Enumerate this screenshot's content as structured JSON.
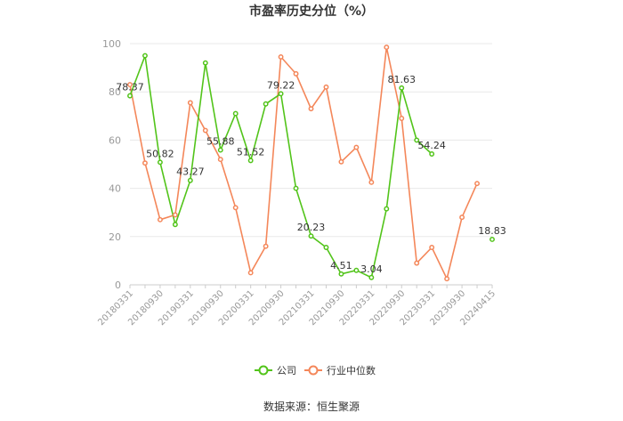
{
  "chart_data": {
    "type": "line",
    "title": "市盈率历史分位（%）",
    "source": "数据来源：恒生聚源",
    "ylim": [
      0,
      100
    ],
    "yticks": [
      0,
      20,
      40,
      60,
      80,
      100
    ],
    "grid": true,
    "legend_position": "bottom",
    "x": [
      "20180331",
      "20180630",
      "20180930",
      "20181231",
      "20190331",
      "20190630",
      "20190930",
      "20191231",
      "20200331",
      "20200630",
      "20200930",
      "20201231",
      "20210331",
      "20210630",
      "20210930",
      "20211231",
      "20220331",
      "20220630",
      "20220930",
      "20221231",
      "20230331",
      "20230630",
      "20230930",
      "20231231",
      "20240415"
    ],
    "xtick_labels": [
      "20180331",
      "20180930",
      "20190331",
      "20190930",
      "20200331",
      "20200930",
      "20210331",
      "20210930",
      "20220331",
      "20220930",
      "20230331",
      "20230930",
      "20240415"
    ],
    "series": [
      {
        "name": "公司",
        "color": "#52c41a",
        "values": [
          78.37,
          95,
          50.82,
          25,
          43.27,
          92,
          55.88,
          71,
          51.52,
          75,
          79.22,
          40,
          20.23,
          15.5,
          4.51,
          6,
          3.04,
          31.5,
          81.63,
          60,
          54.24,
          null,
          null,
          null,
          18.83
        ]
      },
      {
        "name": "行业中位数",
        "color": "#f4875a",
        "values": [
          83,
          50.5,
          27,
          29,
          75.5,
          64,
          52,
          32,
          5,
          16,
          94.5,
          87.5,
          73,
          82,
          51,
          57,
          42.5,
          98.5,
          69,
          9,
          15.5,
          2.5,
          28,
          42,
          null
        ]
      }
    ],
    "data_labels": [
      {
        "series": 0,
        "index": 0,
        "text": "78.37"
      },
      {
        "series": 0,
        "index": 2,
        "text": "50.82"
      },
      {
        "series": 0,
        "index": 4,
        "text": "43.27"
      },
      {
        "series": 0,
        "index": 6,
        "text": "55.88"
      },
      {
        "series": 0,
        "index": 8,
        "text": "51.52"
      },
      {
        "series": 0,
        "index": 10,
        "text": "79.22"
      },
      {
        "series": 0,
        "index": 12,
        "text": "20.23"
      },
      {
        "series": 0,
        "index": 14,
        "text": "4.51"
      },
      {
        "series": 0,
        "index": 16,
        "text": "3.04"
      },
      {
        "series": 0,
        "index": 18,
        "text": "81.63"
      },
      {
        "series": 0,
        "index": 20,
        "text": "54.24"
      },
      {
        "series": 0,
        "index": 24,
        "text": "18.83"
      }
    ]
  }
}
